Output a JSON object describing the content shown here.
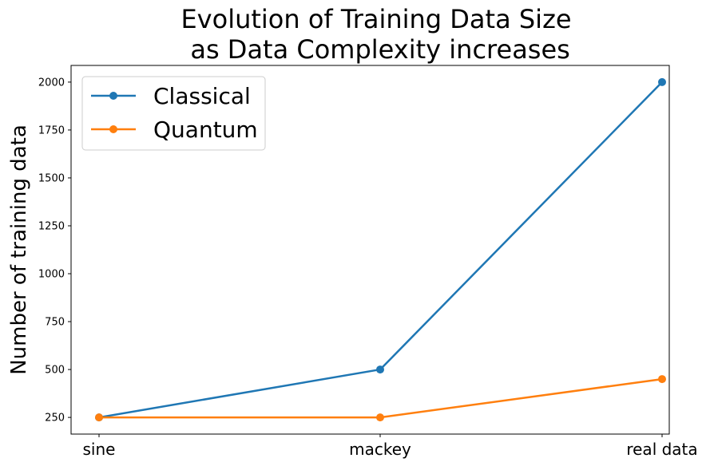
{
  "chart_data": {
    "type": "line",
    "title": [
      "Evolution of Training Data Size",
      " as Data Complexity increases"
    ],
    "xlabel": "",
    "ylabel": "Number of training data",
    "categories": [
      "sine",
      "mackey",
      "real data"
    ],
    "yticks": [
      250,
      500,
      750,
      1000,
      1250,
      1500,
      1750,
      2000
    ],
    "ylim": [
      163,
      2087
    ],
    "grid": false,
    "legend_position": "top-left",
    "series": [
      {
        "name": "Classical",
        "values": [
          250,
          500,
          2000
        ],
        "color": "#1f77b4"
      },
      {
        "name": "Quantum",
        "values": [
          250,
          250,
          450
        ],
        "color": "#ff7f0e"
      }
    ]
  }
}
